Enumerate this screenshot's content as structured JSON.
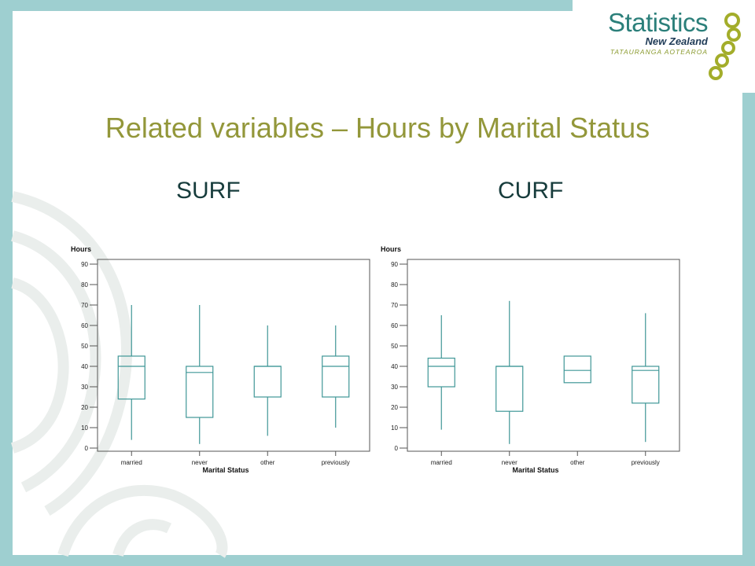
{
  "slide": {
    "title": "Related variables – Hours by Marital Status",
    "left_label": "SURF",
    "right_label": "CURF"
  },
  "logo": {
    "name": "Statistics",
    "sub": "New Zealand",
    "maori": "TATAURANGA AOTEAROA"
  },
  "colors": {
    "frame": "#9ecfd0",
    "title": "#93973a",
    "label": "#173c3c",
    "box": "#3f9797"
  },
  "chart_data": [
    {
      "type": "box",
      "ylabel": "Hours",
      "xlabel": "Marital Status",
      "ylim": [
        0,
        90
      ],
      "yticks": [
        0,
        10,
        20,
        30,
        40,
        50,
        60,
        70,
        80,
        90
      ],
      "categories": [
        "married",
        "never",
        "other",
        "previously"
      ],
      "boxes": [
        {
          "min": 4,
          "q1": 24,
          "median": 40,
          "q3": 45,
          "max": 70
        },
        {
          "min": 2,
          "q1": 15,
          "median": 37,
          "q3": 40,
          "max": 70
        },
        {
          "min": 6,
          "q1": 25,
          "median": 40,
          "q3": 40,
          "max": 60
        },
        {
          "min": 10,
          "q1": 25,
          "median": 40,
          "q3": 45,
          "max": 60
        }
      ]
    },
    {
      "type": "box",
      "ylabel": "Hours",
      "xlabel": "Marital Status",
      "ylim": [
        0,
        90
      ],
      "yticks": [
        0,
        10,
        20,
        30,
        40,
        50,
        60,
        70,
        80,
        90
      ],
      "categories": [
        "married",
        "never",
        "other",
        "previously"
      ],
      "boxes": [
        {
          "min": 9,
          "q1": 30,
          "median": 40,
          "q3": 44,
          "max": 65
        },
        {
          "min": 2,
          "q1": 18,
          "median": 40,
          "q3": 40,
          "max": 72
        },
        {
          "min": 32,
          "q1": 32,
          "median": 38,
          "q3": 45,
          "max": 45
        },
        {
          "min": 3,
          "q1": 22,
          "median": 38,
          "q3": 40,
          "max": 66
        }
      ]
    }
  ]
}
